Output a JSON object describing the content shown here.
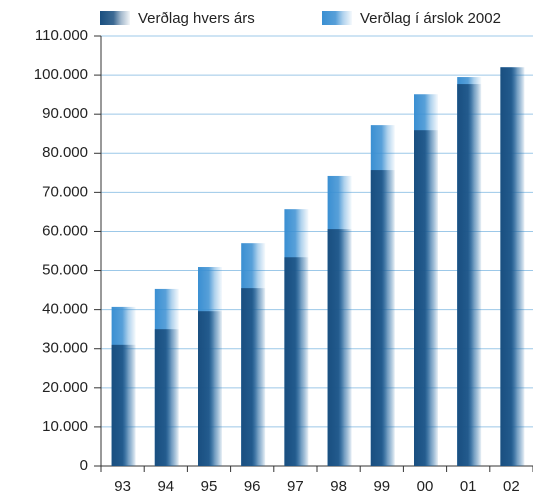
{
  "chart_data": {
    "type": "bar",
    "categories": [
      "93",
      "94",
      "95",
      "96",
      "97",
      "98",
      "99",
      "00",
      "01",
      "02"
    ],
    "series": [
      {
        "name": "Verðlag hvers árs",
        "color": "#1a4f80",
        "values": [
          31000,
          35000,
          39600,
          45500,
          53400,
          60600,
          75700,
          85900,
          97700,
          102000
        ]
      },
      {
        "name": "Verðlag í árslok 2002",
        "color": "#3a8fd2",
        "values": [
          40700,
          45300,
          50900,
          57000,
          65700,
          74200,
          87200,
          95100,
          99500,
          102000
        ]
      }
    ],
    "ylim": [
      0,
      110000
    ],
    "yticks": [
      0,
      {
        "value": 10000,
        "label": "10.000"
      },
      {
        "value": 20000,
        "label": "20.000"
      },
      {
        "value": 30000,
        "label": "30.000"
      },
      {
        "value": 40000,
        "label": "40.000"
      },
      {
        "value": 50000,
        "label": "50.000"
      },
      {
        "value": 60000,
        "label": "60.000"
      },
      {
        "value": 70000,
        "label": "70.000"
      },
      {
        "value": 80000,
        "label": "80.000"
      },
      {
        "value": 90000,
        "label": "90.000"
      },
      {
        "value": 100000,
        "label": "100.000"
      },
      {
        "value": 110000,
        "label": "110.000"
      }
    ],
    "grid": true
  }
}
